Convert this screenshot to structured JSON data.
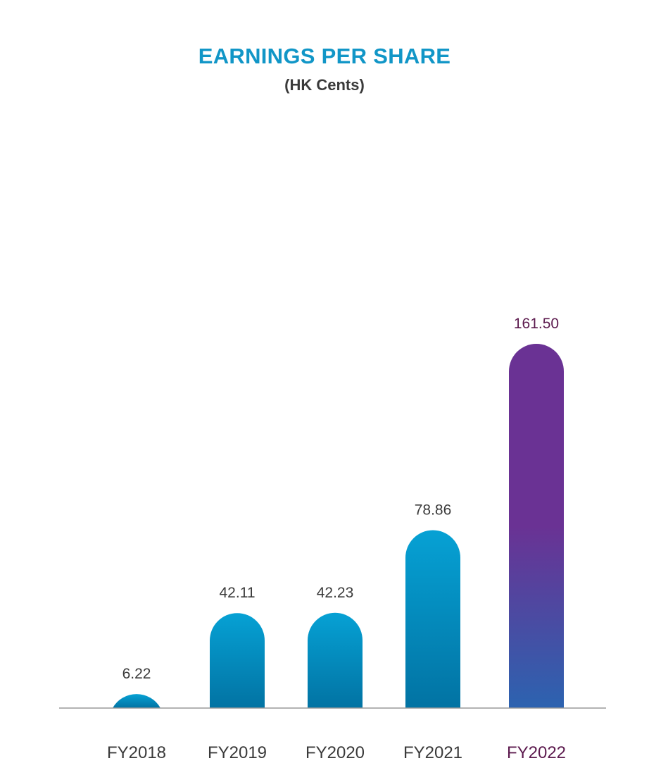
{
  "colors": {
    "title": "#1196c7",
    "subtitle": "#3a3a3a",
    "label": "#3a3a3a",
    "highlight_label": "#5c1a4e",
    "axis": "#9a9a9a",
    "blue_top": "#06a1d4",
    "blue_bottom": "#0273a3",
    "purple_top": "#6a3294",
    "purple_bottom": "#2c63b0"
  },
  "chart_data": {
    "type": "bar",
    "title": "EARNINGS PER SHARE",
    "subtitle": "(HK Cents)",
    "categories": [
      "FY2018",
      "FY2019",
      "FY2020",
      "FY2021",
      "FY2022"
    ],
    "values": [
      6.22,
      42.11,
      42.23,
      78.86,
      161.5
    ],
    "value_labels": [
      "6.22",
      "42.11",
      "42.23",
      "78.86",
      "161.50"
    ],
    "highlight_category": "FY2022",
    "ylim": [
      0,
      161.5
    ],
    "grid": false,
    "legend": "none"
  }
}
